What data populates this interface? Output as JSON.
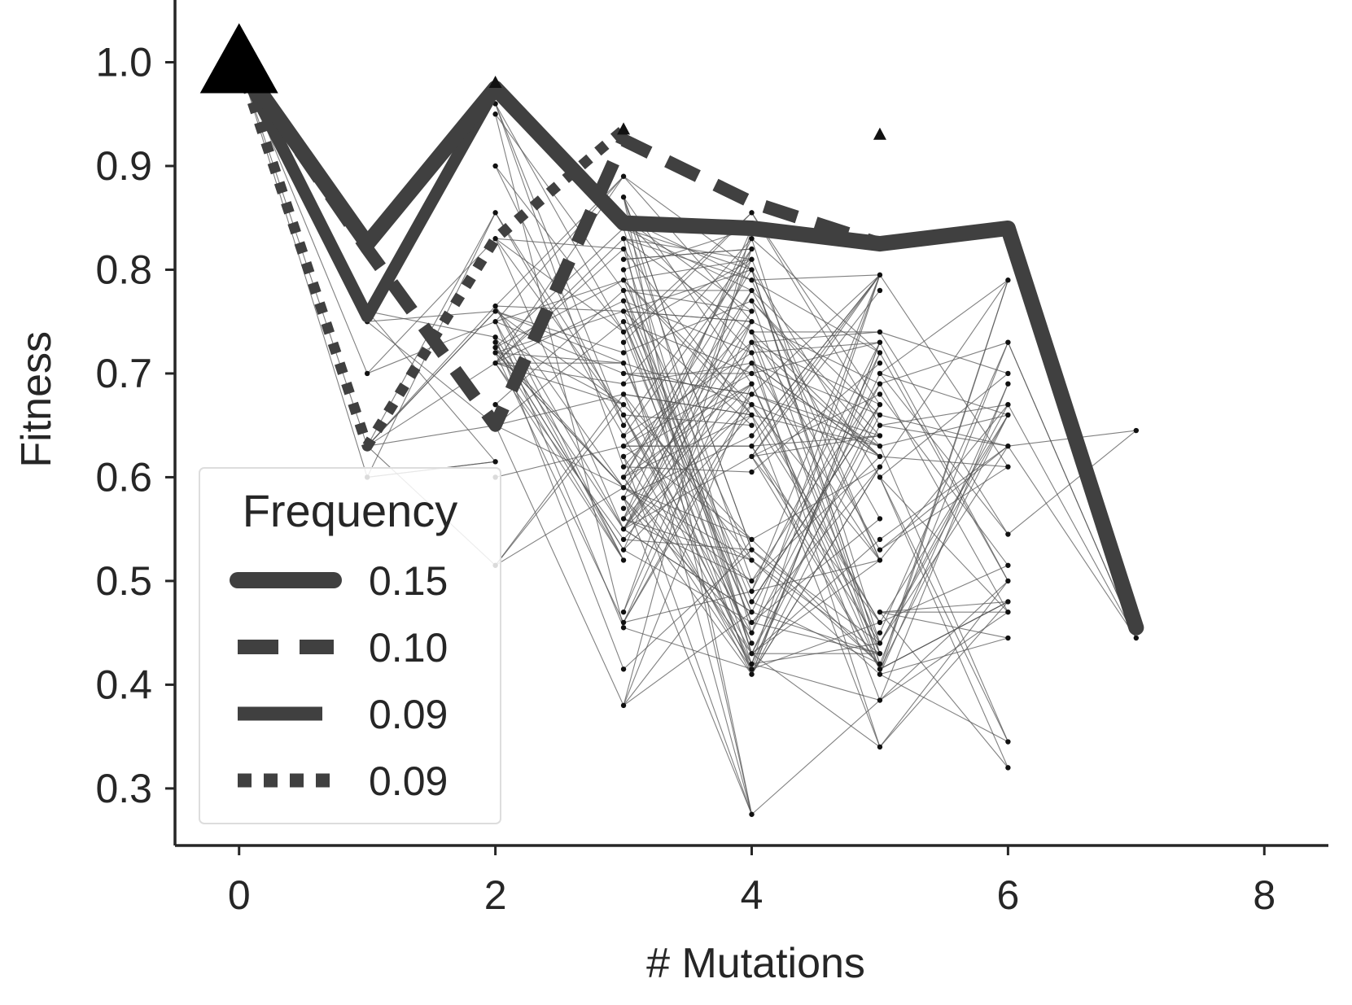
{
  "chart_data": {
    "type": "line",
    "title": "",
    "xlabel": "# Mutations",
    "ylabel": "Fitness",
    "xlim": [
      -0.5,
      8.5
    ],
    "ylim": [
      0.245,
      1.06
    ],
    "x_ticks": [
      0,
      2,
      4,
      6,
      8
    ],
    "x_tick_labels": [
      "0",
      "2",
      "4",
      "6",
      "8"
    ],
    "y_ticks": [
      0.3,
      0.4,
      0.5,
      0.6,
      0.7,
      0.8,
      0.9,
      1.0
    ],
    "y_tick_labels": [
      "0.3",
      "0.4",
      "0.5",
      "0.6",
      "0.7",
      "0.8",
      "0.9",
      "1.0"
    ],
    "grid": false,
    "legend": {
      "title": "Frequency",
      "placement": "lower-left",
      "entries": [
        {
          "label": "0.15",
          "style": "solid-thick"
        },
        {
          "label": "0.10",
          "style": "dashed"
        },
        {
          "label": "0.09",
          "style": "solid"
        },
        {
          "label": "0.09",
          "style": "dotted"
        }
      ]
    },
    "colors": {
      "path": "#404040",
      "background_lines": "#555555",
      "nodes": "#111111",
      "axis": "#262626"
    },
    "start_marker": {
      "x": 0,
      "y": 1.0,
      "shape": "triangle"
    },
    "highlighted_paths": [
      {
        "frequency": "0.15",
        "style": "solid-thick",
        "x": [
          0,
          1,
          2,
          3,
          4,
          5,
          6,
          7
        ],
        "y": [
          1.0,
          0.825,
          0.975,
          0.845,
          0.84,
          0.825,
          0.84,
          0.455
        ]
      },
      {
        "frequency": "0.10",
        "style": "dashed",
        "x": [
          0,
          1,
          2,
          3,
          4,
          5
        ],
        "y": [
          1.0,
          0.82,
          0.65,
          0.925,
          0.865,
          0.825
        ]
      },
      {
        "frequency": "0.09",
        "style": "solid",
        "x": [
          0,
          1,
          2
        ],
        "y": [
          1.0,
          0.755,
          0.975
        ]
      },
      {
        "frequency": "0.09",
        "style": "dotted",
        "x": [
          0,
          1,
          2,
          3
        ],
        "y": [
          1.0,
          0.63,
          0.83,
          0.935
        ]
      }
    ],
    "peak_markers": [
      {
        "x": 2,
        "y": 0.98
      },
      {
        "x": 3,
        "y": 0.935
      },
      {
        "x": 5,
        "y": 0.93
      }
    ],
    "nodes": [
      {
        "x": 1,
        "values": [
          0.76,
          0.75,
          0.7,
          0.63,
          0.6
        ]
      },
      {
        "x": 2,
        "values": [
          0.96,
          0.95,
          0.9,
          0.855,
          0.83,
          0.765,
          0.76,
          0.75,
          0.735,
          0.73,
          0.725,
          0.72,
          0.71,
          0.67,
          0.65,
          0.615,
          0.6,
          0.515
        ]
      },
      {
        "x": 3,
        "values": [
          0.89,
          0.87,
          0.85,
          0.84,
          0.83,
          0.82,
          0.81,
          0.8,
          0.79,
          0.78,
          0.77,
          0.76,
          0.75,
          0.74,
          0.73,
          0.72,
          0.71,
          0.7,
          0.69,
          0.68,
          0.67,
          0.66,
          0.65,
          0.64,
          0.63,
          0.62,
          0.61,
          0.6,
          0.59,
          0.58,
          0.57,
          0.56,
          0.55,
          0.54,
          0.53,
          0.52,
          0.47,
          0.46,
          0.455,
          0.415,
          0.38
        ]
      },
      {
        "x": 4,
        "values": [
          0.855,
          0.84,
          0.83,
          0.82,
          0.81,
          0.8,
          0.79,
          0.78,
          0.77,
          0.76,
          0.75,
          0.74,
          0.73,
          0.72,
          0.71,
          0.7,
          0.69,
          0.68,
          0.67,
          0.66,
          0.65,
          0.64,
          0.63,
          0.62,
          0.605,
          0.54,
          0.53,
          0.52,
          0.5,
          0.49,
          0.48,
          0.47,
          0.46,
          0.45,
          0.44,
          0.43,
          0.42,
          0.415,
          0.41,
          0.275
        ]
      },
      {
        "x": 5,
        "values": [
          0.795,
          0.78,
          0.74,
          0.73,
          0.72,
          0.71,
          0.7,
          0.69,
          0.68,
          0.67,
          0.66,
          0.65,
          0.64,
          0.63,
          0.62,
          0.61,
          0.6,
          0.56,
          0.54,
          0.53,
          0.52,
          0.47,
          0.46,
          0.45,
          0.44,
          0.43,
          0.42,
          0.415,
          0.41,
          0.385,
          0.34
        ]
      },
      {
        "x": 6,
        "values": [
          0.79,
          0.73,
          0.7,
          0.69,
          0.67,
          0.66,
          0.63,
          0.61,
          0.545,
          0.515,
          0.5,
          0.48,
          0.47,
          0.445,
          0.345,
          0.32
        ]
      },
      {
        "x": 7,
        "values": [
          0.645,
          0.445
        ]
      }
    ]
  }
}
